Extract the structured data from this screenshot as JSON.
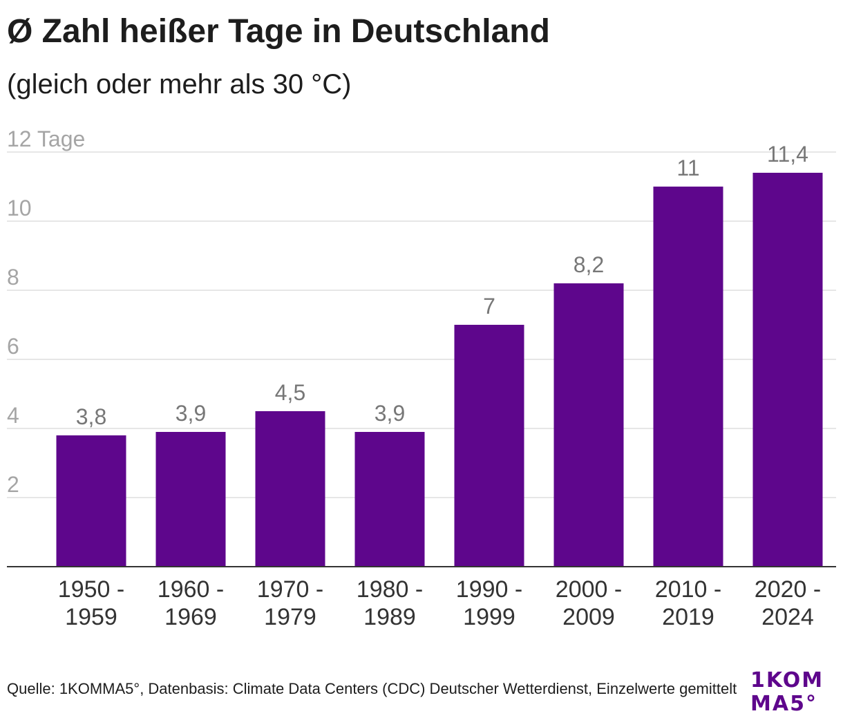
{
  "header": {
    "title": "Ø Zahl heißer Tage in Deutschland",
    "subtitle": "(gleich oder mehr als 30 °C)"
  },
  "chart_data": {
    "type": "bar",
    "title": "Ø Zahl heißer Tage in Deutschland",
    "subtitle": "(gleich oder mehr als 30 °C)",
    "categories": [
      [
        "1950 -",
        "1959"
      ],
      [
        "1960 -",
        "1969"
      ],
      [
        "1970 -",
        "1979"
      ],
      [
        "1980 -",
        "1989"
      ],
      [
        "1990 -",
        "1999"
      ],
      [
        "2000 -",
        "2009"
      ],
      [
        "2010 -",
        "2019"
      ],
      [
        "2020 -",
        "2024"
      ]
    ],
    "values": [
      3.8,
      3.9,
      4.5,
      3.9,
      7.0,
      8.2,
      11.0,
      11.4
    ],
    "value_labels": [
      "3,8",
      "3,9",
      "4,5",
      "3,9",
      "7",
      "8,2",
      "11",
      "11,4"
    ],
    "ylim": [
      0,
      12
    ],
    "yticks": [
      2,
      4,
      6,
      8,
      10,
      12
    ],
    "ytick_labels": [
      "2",
      "4",
      "6",
      "8",
      "10",
      "12 Tage"
    ],
    "grid": true,
    "colors": {
      "bar": "#5e068c",
      "grid": "#dddddd",
      "axis": "#333333",
      "tick_text": "#a5a5a5",
      "value_text": "#777777",
      "category_text": "#333333"
    }
  },
  "footer": {
    "source": "Quelle: 1KOMMA5°, Datenbasis: Climate Data Centers (CDC) Deutscher Wetterdienst, Einzelwerte gemittelt",
    "logo_line1": "1KOM",
    "logo_line2": "MA5°"
  }
}
